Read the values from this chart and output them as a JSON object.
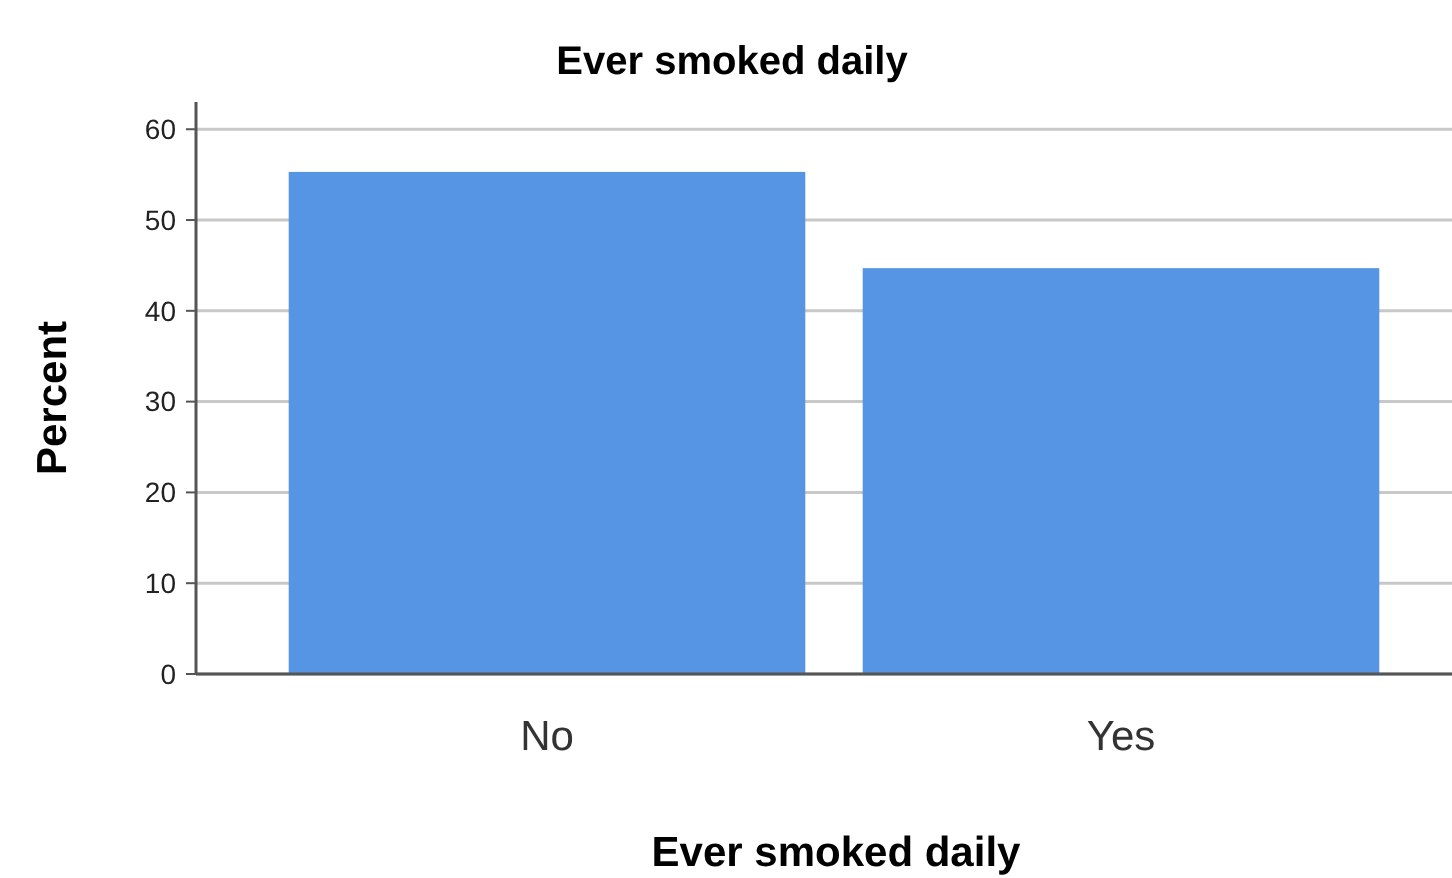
{
  "chart_data": {
    "type": "bar",
    "title": "Ever smoked daily",
    "xlabel": "Ever smoked daily",
    "ylabel": "Percent",
    "categories": [
      "No",
      "Yes"
    ],
    "values": [
      55.3,
      44.7
    ],
    "color": "#5595e3",
    "ylim": [
      0,
      63
    ],
    "yticks": [
      0,
      10,
      20,
      30,
      40,
      50,
      60
    ],
    "grid": "y"
  }
}
